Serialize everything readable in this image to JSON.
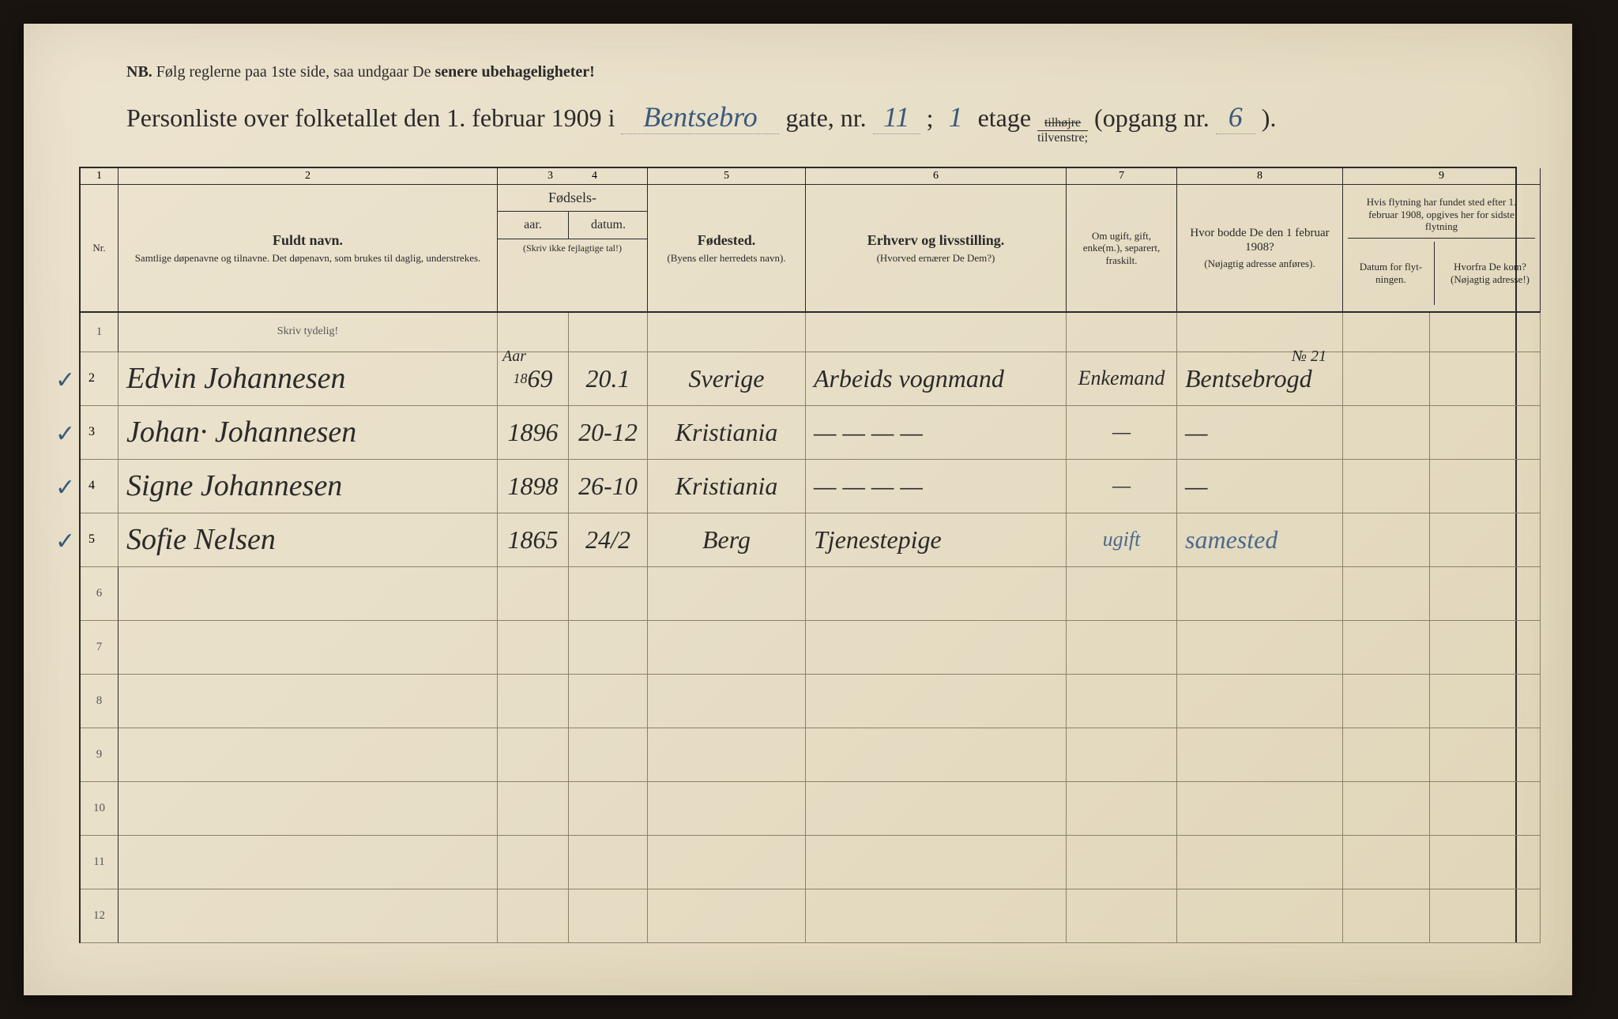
{
  "colors": {
    "paper_bg_start": "#ede4d0",
    "paper_bg_end": "#e0d5b8",
    "ink": "#2a2a2a",
    "rule_light": "#8a8268",
    "hand_blue": "#3a5a7a",
    "hand_dark": "#2a2a2a",
    "frame_bg": "#1a1410"
  },
  "nb": {
    "prefix": "NB.",
    "text_a": "Følg reglerne paa 1ste side, saa undgaar De ",
    "text_b": "senere ubehageligheter!"
  },
  "title": {
    "lead": "Personliste over folketallet den 1. februar 1909 i",
    "street_hand": "Bentsebro",
    "gate": "gate, nr.",
    "nr_hand": "11",
    "semi": ";",
    "etage_hand": "1",
    "etage": "etage",
    "side_top": "tilhøjre",
    "side_bot": "tilvenstre;",
    "opgang": "(opgang nr.",
    "opgang_hand": "6",
    "close": ")."
  },
  "head_nums": {
    "c1": "1",
    "c2": "2",
    "c34": "3              4",
    "c5": "5",
    "c6": "6",
    "c7": "7",
    "c8": "8",
    "c9": "9"
  },
  "head": {
    "nr": "Nr.",
    "fuldt": "Fuldt navn.",
    "fuldt_sub": "Samtlige døpenavne og tilnavne. Det døpenavn, som brukes til daglig, understrekes.",
    "fod": "Fødsels-",
    "aar": "aar.",
    "datum": "datum.",
    "fod_note": "(Skriv ikke fejlagtige tal!)",
    "fodested": "Fødested.",
    "fodested_sub": "(Byens eller herre­dets navn).",
    "erhverv": "Erhverv og livsstilling.",
    "erhverv_sub": "(Hvorved ernærer De Dem?)",
    "ugift": "Om ugift, gift, enke(m.), separert, fraskilt.",
    "bodde": "Hvor bodde De den 1 februar 1908?",
    "bodde_sub": "(Nøjagtig adresse anføres).",
    "c9_top": "Hvis flytning har fundet sted efter 1. februar 1908, opgives her for sidste flytning",
    "c9_a": "Datum for flyt­ningen.",
    "c9_b": "Hvorfra De kom? (Nøjagtig adresse!)"
  },
  "hint_row": "Skriv tydelig!",
  "super_aar": "Aar",
  "super_no": "№ 21",
  "rows": [
    {
      "nr": "2",
      "tick": "✓",
      "name": "Edvin Johannesen",
      "aar": "1869",
      "aar_prefix": "18",
      "datum": "20.1",
      "sted": "Sverige",
      "erhverv": "Arbeids vognmand",
      "status": "Enkemand",
      "addr": "Bentsebrogd",
      "c9a": "",
      "c9b": ""
    },
    {
      "nr": "3",
      "tick": "✓",
      "name": "Johan· Johannesen",
      "aar": "1896",
      "datum": "20-12",
      "sted": "Kristiania",
      "erhverv": "— — — —",
      "status": "—",
      "addr": "—",
      "c9a": "",
      "c9b": ""
    },
    {
      "nr": "4",
      "tick": "✓",
      "name": "Signe Johannesen",
      "aar": "1898",
      "datum": "26-10",
      "sted": "Kristiania",
      "erhverv": "— — — —",
      "status": "—",
      "addr": "—",
      "c9a": "",
      "c9b": ""
    },
    {
      "nr": "5",
      "tick": "✓",
      "name": "Sofie Nelsen",
      "aar": "1865",
      "datum": "24/2",
      "sted": "Berg",
      "erhverv": "Tjenestepige",
      "status": "ugift",
      "status_blue": true,
      "addr": "samested",
      "addr_blue": true,
      "c9a": "",
      "c9b": ""
    }
  ],
  "empty_rows": [
    "6",
    "7",
    "8",
    "9",
    "10",
    "11",
    "12"
  ]
}
